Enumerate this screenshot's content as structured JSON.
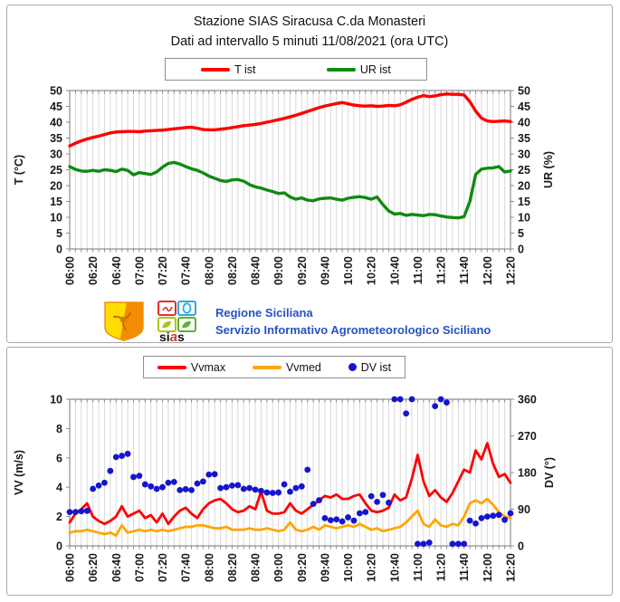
{
  "panel1": {
    "title": "Stazione SIAS Siracusa C.da Monasteri",
    "subtitle": "Dati ad intervallo 5 minuti 11/08/2021 (ora UTC)"
  },
  "branding": {
    "line1": "Regione Siciliana",
    "line2": "Servizio Informativo Agrometeorologico Siciliano",
    "sias": {
      "s1": "si",
      "s2": "a",
      "s3": "s"
    }
  },
  "colors": {
    "temperature": "#FF0000",
    "humidity": "#118A11",
    "wind_max": "#FF0000",
    "wind_mean": "#FFA500",
    "wind_dir": "#1515CF",
    "brand_blue": "#2553C4"
  },
  "chart_data": [
    {
      "type": "line",
      "title": "Stazione SIAS Siracusa C.da Monasteri",
      "subtitle": "Dati ad intervallo 5 minuti 11/08/2021 (ora UTC)",
      "x_interval_minutes": 5,
      "x_start": "06:00",
      "x_end": "12:20",
      "x_tick_labels": [
        "06:00",
        "06:20",
        "06:40",
        "07:00",
        "07:20",
        "07:40",
        "08:00",
        "08:20",
        "08:40",
        "09:00",
        "09:20",
        "09:40",
        "10:00",
        "10:20",
        "10:40",
        "11:00",
        "11:20",
        "11:40",
        "12:00",
        "12:20"
      ],
      "x_label_every": 4,
      "ylabel_left": "T (°C)",
      "ylabel_right": "UR (%)",
      "ylim": [
        0,
        50
      ],
      "yticks": [
        0,
        5,
        10,
        15,
        20,
        25,
        30,
        35,
        40,
        45,
        50
      ],
      "ylim_right": [
        0,
        50
      ],
      "yticks_right": [
        0,
        5,
        10,
        15,
        20,
        25,
        30,
        35,
        40,
        45,
        50
      ],
      "grid": "vertical-only",
      "legend_position": "top",
      "series": [
        {
          "name": "T ist",
          "type": "line",
          "axis": "left",
          "color": "#FF0000",
          "width": 3.4,
          "values": [
            32.5,
            33.4,
            34.1,
            34.7,
            35.2,
            35.6,
            36.1,
            36.6,
            36.9,
            37.0,
            37.1,
            37.1,
            37.0,
            37.2,
            37.3,
            37.4,
            37.5,
            37.7,
            37.9,
            38.1,
            38.3,
            38.4,
            38.1,
            37.7,
            37.6,
            37.6,
            37.8,
            38.0,
            38.3,
            38.6,
            38.9,
            39.1,
            39.3,
            39.6,
            40.0,
            40.4,
            40.8,
            41.2,
            41.7,
            42.2,
            42.8,
            43.4,
            44.0,
            44.6,
            45.1,
            45.5,
            45.9,
            46.2,
            45.8,
            45.4,
            45.2,
            45.1,
            45.2,
            45.0,
            45.1,
            45.3,
            45.2,
            45.5,
            46.3,
            47.2,
            47.9,
            48.4,
            48.1,
            48.3,
            48.7,
            48.9,
            48.8,
            48.8,
            48.6,
            46.5,
            43.5,
            41.3,
            40.4,
            40.2,
            40.3,
            40.4,
            40.2
          ]
        },
        {
          "name": "UR ist",
          "type": "line",
          "axis": "left",
          "color": "#118A11",
          "width": 3.4,
          "values": [
            26.0,
            25.1,
            24.6,
            24.5,
            24.8,
            24.5,
            25.0,
            24.8,
            24.4,
            25.2,
            24.8,
            23.4,
            24.1,
            23.8,
            23.5,
            24.3,
            25.8,
            27.0,
            27.3,
            26.8,
            26.0,
            25.3,
            24.8,
            24.0,
            23.0,
            22.3,
            21.6,
            21.3,
            21.8,
            21.9,
            21.4,
            20.3,
            19.6,
            19.2,
            18.6,
            18.1,
            17.5,
            17.7,
            16.4,
            15.7,
            16.1,
            15.4,
            15.2,
            15.8,
            16.0,
            16.1,
            15.7,
            15.4,
            16.0,
            16.3,
            16.5,
            16.2,
            15.7,
            16.4,
            14.0,
            12.0,
            11.0,
            11.2,
            10.6,
            10.9,
            10.7,
            10.5,
            10.9,
            10.8,
            10.4,
            10.1,
            9.9,
            9.8,
            10.2,
            15.0,
            23.5,
            25.2,
            25.5,
            25.6,
            26.0,
            24.3,
            24.6
          ]
        }
      ]
    },
    {
      "type": "line+scatter",
      "x_interval_minutes": 5,
      "x_start": "06:00",
      "x_end": "12:20",
      "x_tick_labels": [
        "06:00",
        "06:20",
        "06:40",
        "07:00",
        "07:20",
        "07:40",
        "08:00",
        "08:20",
        "08:40",
        "09:00",
        "09:20",
        "09:40",
        "10:00",
        "10:20",
        "10:40",
        "11:00",
        "11:20",
        "11:40",
        "12:00",
        "12:20"
      ],
      "x_label_every": 4,
      "ylabel_left": "VV (m/s)",
      "ylabel_right": "DV (°)",
      "ylim": [
        0,
        10
      ],
      "yticks": [
        0,
        2,
        4,
        6,
        8,
        10
      ],
      "ylim_right": [
        0,
        360
      ],
      "yticks_right": [
        0,
        90,
        180,
        270,
        360
      ],
      "grid": "vertical-only",
      "legend_position": "top",
      "series": [
        {
          "name": "Vvmax",
          "type": "line",
          "axis": "left",
          "color": "#FF0000",
          "width": 2.8,
          "values": [
            1.6,
            2.2,
            2.5,
            2.9,
            2.0,
            1.7,
            1.5,
            1.7,
            2.0,
            2.7,
            2.0,
            2.2,
            2.4,
            1.9,
            2.1,
            1.6,
            2.2,
            1.5,
            2.0,
            2.4,
            2.6,
            2.2,
            1.9,
            2.5,
            2.9,
            3.1,
            3.2,
            2.9,
            2.5,
            2.3,
            2.4,
            2.7,
            2.5,
            3.7,
            2.4,
            2.2,
            2.2,
            2.3,
            2.9,
            2.4,
            2.2,
            2.5,
            2.8,
            3.1,
            3.4,
            3.3,
            3.5,
            3.2,
            3.2,
            3.4,
            3.5,
            2.9,
            2.4,
            2.3,
            2.4,
            2.6,
            3.5,
            3.1,
            3.3,
            4.6,
            6.2,
            4.4,
            3.4,
            3.8,
            3.3,
            3.0,
            3.6,
            4.4,
            5.2,
            5.0,
            6.5,
            5.9,
            7.0,
            5.6,
            4.7,
            4.9,
            4.3
          ]
        },
        {
          "name": "Vvmed",
          "type": "line",
          "axis": "left",
          "color": "#FFA500",
          "width": 2.8,
          "values": [
            0.9,
            1.0,
            1.0,
            1.1,
            1.0,
            0.9,
            0.8,
            0.9,
            0.7,
            1.4,
            0.9,
            1.0,
            1.1,
            1.0,
            1.1,
            1.0,
            1.1,
            1.0,
            1.1,
            1.2,
            1.3,
            1.3,
            1.4,
            1.4,
            1.3,
            1.2,
            1.2,
            1.3,
            1.1,
            1.1,
            1.1,
            1.2,
            1.1,
            1.1,
            1.2,
            1.1,
            1.0,
            1.1,
            1.6,
            1.1,
            1.0,
            1.1,
            1.3,
            1.1,
            1.4,
            1.3,
            1.2,
            1.3,
            1.4,
            1.3,
            1.5,
            1.3,
            1.1,
            1.2,
            1.0,
            1.1,
            1.2,
            1.3,
            1.6,
            2.0,
            2.4,
            1.5,
            1.3,
            1.8,
            1.4,
            1.3,
            1.5,
            1.4,
            2.0,
            2.9,
            3.1,
            2.9,
            3.2,
            2.8,
            2.3,
            2.0,
            1.9
          ]
        },
        {
          "name": "DV ist",
          "type": "points",
          "axis": "right",
          "color": "#1515CF",
          "radius": 3.4,
          "values": [
            83,
            83,
            85,
            86,
            140,
            148,
            155,
            184,
            218,
            221,
            226,
            169,
            172,
            151,
            146,
            140,
            144,
            155,
            157,
            137,
            139,
            137,
            153,
            158,
            175,
            176,
            142,
            144,
            148,
            149,
            140,
            142,
            138,
            135,
            131,
            130,
            131,
            151,
            133,
            142,
            146,
            187,
            103,
            112,
            68,
            63,
            65,
            60,
            70,
            62,
            80,
            83,
            122,
            108,
            125,
            106,
            360,
            360,
            325,
            360,
            5,
            5,
            8,
            343,
            360,
            352,
            5,
            5,
            5,
            62,
            55,
            68,
            72,
            74,
            76,
            64,
            80
          ]
        }
      ]
    }
  ]
}
